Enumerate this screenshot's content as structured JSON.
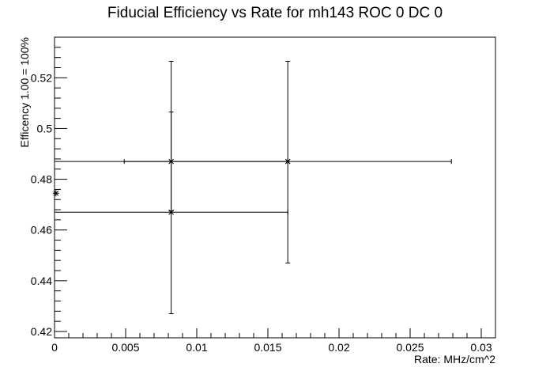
{
  "chart_data": {
    "type": "scatter",
    "title": "Fiducial Efficiency vs Rate for mh143 ROC 0 DC 0",
    "xlabel": "Rate: MHz/cm^2",
    "ylabel": "Efficency 1.00 = 100%",
    "xlim": [
      0,
      0.031
    ],
    "ylim": [
      0.4175,
      0.536
    ],
    "x_ticks": [
      0,
      0.005,
      0.01,
      0.015,
      0.02,
      0.025,
      0.03
    ],
    "x_tick_labels": [
      "0",
      "0.005",
      "0.01",
      "0.015",
      "0.02",
      "0.025",
      "0.03"
    ],
    "y_ticks": [
      0.42,
      0.44,
      0.46,
      0.48,
      0.5,
      0.52
    ],
    "y_tick_labels": [
      "0.42",
      "0.44",
      "0.46",
      "0.48",
      "0.5",
      "0.52"
    ],
    "grid": false,
    "legend": "none",
    "points": [
      {
        "x": 0.0082,
        "y": 0.487,
        "x_low": 0.0,
        "x_high": 0.0164,
        "y_low": 0.4675,
        "y_high": 0.5265,
        "marker": "x"
      },
      {
        "x": 0.0082,
        "y": 0.467,
        "x_low": 0.0,
        "x_high": 0.0164,
        "y_low": 0.427,
        "y_high": 0.5065,
        "marker": "x"
      },
      {
        "x": 0.0164,
        "y": 0.487,
        "x_low": 0.0049,
        "x_high": 0.0279,
        "y_low": 0.447,
        "y_high": 0.5265,
        "marker": "x"
      },
      {
        "x": 0.0001,
        "y": 0.4745,
        "x_low": null,
        "x_high": null,
        "y_low": null,
        "y_high": null,
        "marker": "star"
      }
    ]
  }
}
